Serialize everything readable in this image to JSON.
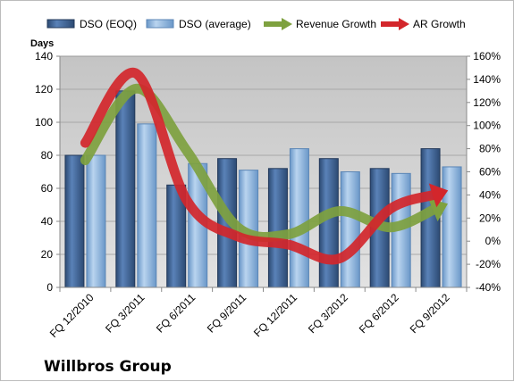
{
  "chart_data": {
    "type": "bar",
    "categories": [
      "FQ 12/2010",
      "FQ 3/2011",
      "FQ 6/2011",
      "FQ 9/2011",
      "FQ 12/2011",
      "FQ 3/2012",
      "FQ 6/2012",
      "FQ 9/2012"
    ],
    "series": [
      {
        "name": "DSO (EOQ)",
        "kind": "bar",
        "axis": "left",
        "color": "#3d5f8f",
        "values": [
          80,
          119,
          62,
          78,
          72,
          78,
          72,
          84
        ]
      },
      {
        "name": "DSO (average)",
        "kind": "bar",
        "axis": "left",
        "color": "#8cb3dd",
        "values": [
          80,
          99,
          75,
          71,
          84,
          70,
          69,
          73
        ]
      },
      {
        "name": "Revenue Growth",
        "kind": "arrow-line",
        "axis": "right",
        "color": "#7ea13f",
        "values": [
          0.7,
          1.32,
          0.78,
          0.12,
          0.06,
          0.26,
          0.12,
          0.3
        ]
      },
      {
        "name": "AR Growth",
        "kind": "arrow-line",
        "axis": "right",
        "color": "#d3262b",
        "values": [
          0.85,
          1.45,
          0.35,
          0.04,
          -0.03,
          -0.15,
          0.28,
          0.42
        ]
      }
    ],
    "y_left": {
      "label": "Days",
      "min": 0,
      "max": 140,
      "step": 20,
      "ticks": [
        "0",
        "20",
        "40",
        "60",
        "80",
        "100",
        "120",
        "140"
      ]
    },
    "y_right": {
      "min": -0.4,
      "max": 1.6,
      "step": 0.2,
      "ticks": [
        "-40%",
        "-20%",
        "0%",
        "20%",
        "40%",
        "60%",
        "80%",
        "100%",
        "120%",
        "140%",
        "160%"
      ]
    },
    "grid": true,
    "plot_background": "#d4d4d4",
    "legend_position": "top",
    "legend": [
      "DSO (EOQ)",
      "DSO (average)",
      "Revenue Growth",
      "AR Growth"
    ],
    "company": "Willbros Group"
  }
}
